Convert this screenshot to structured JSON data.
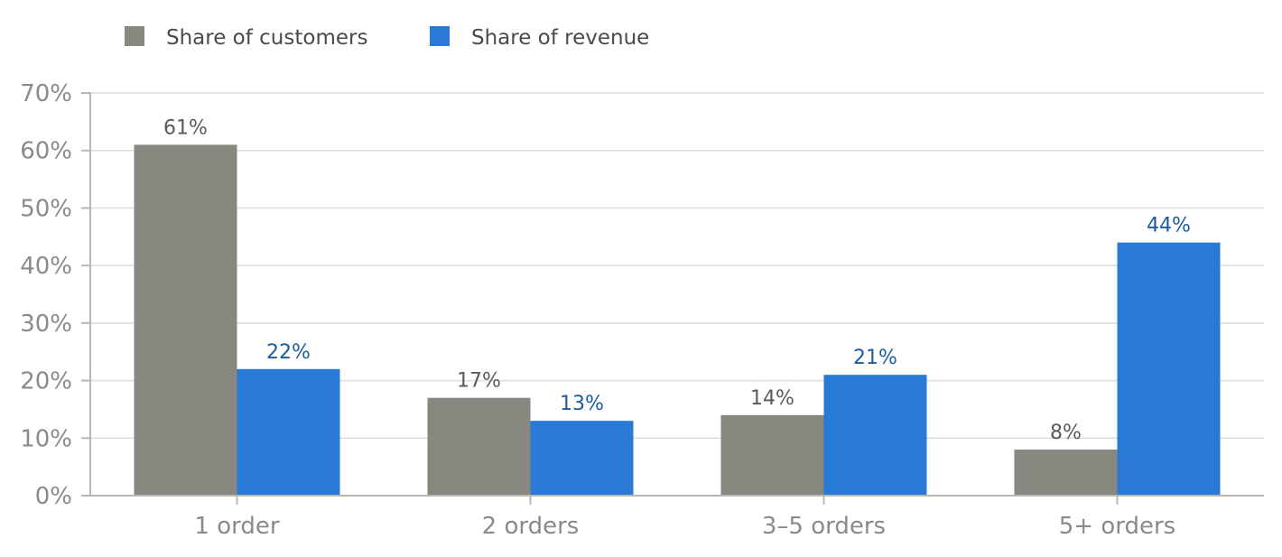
{
  "chart_data": {
    "type": "bar",
    "title": "",
    "xlabel": "",
    "ylabel": "",
    "categories": [
      "1 order",
      "2 orders",
      "3–5 orders",
      "5+ orders"
    ],
    "series": [
      {
        "name": "Share of customers",
        "color": "#888780",
        "label_color": "#5a5a5a",
        "values": [
          61,
          17,
          14,
          8
        ],
        "labels": [
          "61%",
          "17%",
          "14%",
          "8%"
        ]
      },
      {
        "name": "Share of revenue",
        "color": "#2979d6",
        "label_color": "#1b5c9e",
        "values": [
          22,
          13,
          21,
          44
        ],
        "labels": [
          "22%",
          "13%",
          "21%",
          "44%"
        ]
      }
    ],
    "ylim": [
      0,
      70
    ],
    "yticks": [
      0,
      10,
      20,
      30,
      40,
      50,
      60,
      70
    ],
    "ytick_labels": [
      "0%",
      "10%",
      "20%",
      "30%",
      "40%",
      "50%",
      "60%",
      "70%"
    ],
    "grid": true,
    "legend_position": "top-left"
  },
  "colors": {
    "grid": "#dcdcdc",
    "axis": "#b8b8b0",
    "tick_text": "#8a8a8a"
  }
}
